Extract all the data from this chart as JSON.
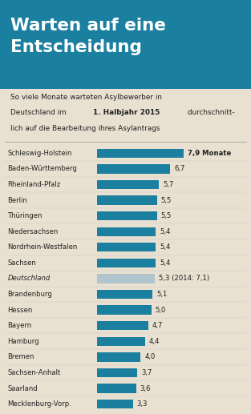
{
  "title_line1": "Warten auf eine",
  "title_line2": "Entscheidung",
  "categories": [
    "Schleswig-Holstein",
    "Baden-Württemberg",
    "Rheinland-Pfalz",
    "Berlin",
    "Thüringen",
    "Niedersachsen",
    "Nordrhein-Westfalen",
    "Sachsen",
    "Deutschland",
    "Brandenburg",
    "Hessen",
    "Bayern",
    "Hamburg",
    "Bremen",
    "Sachsen-Anhalt",
    "Saarland",
    "Mecklenburg-Vorp."
  ],
  "values": [
    7.9,
    6.7,
    5.7,
    5.5,
    5.5,
    5.4,
    5.4,
    5.4,
    5.3,
    5.1,
    5.0,
    4.7,
    4.4,
    4.0,
    3.7,
    3.6,
    3.3
  ],
  "labels": [
    "7,9 Monate",
    "6,7",
    "5,7",
    "5,5",
    "5,5",
    "5,4",
    "5,4",
    "5,4",
    "5,3 (2014: 7,1)",
    "5,1",
    "5,0",
    "4,7",
    "4,4",
    "4,0",
    "3,7",
    "3,6",
    "3,3"
  ],
  "bar_color_normal": "#1b7fa0",
  "bar_color_deutschland": "#b0c4ce",
  "title_bg_color": "#1b7fa0",
  "title_text_color": "#ffffff",
  "bg_color": "#e8e0d0",
  "text_color": "#222222",
  "deutschland_index": 8,
  "max_val": 9.5
}
